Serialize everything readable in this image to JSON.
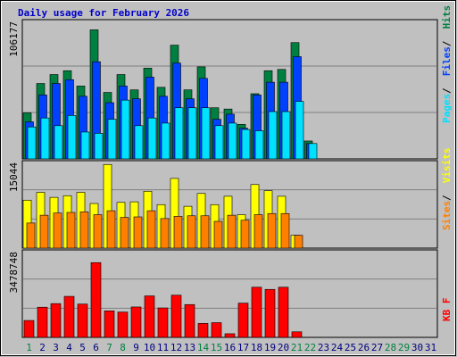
{
  "title": "Daily usage for February 2026",
  "colors": {
    "hits": "#008040",
    "files": "#0040ff",
    "pages": "#00e0ff",
    "visits": "#ffff00",
    "sites": "#ff8000",
    "kbytes": "#ff0000",
    "weekend_day": "#008040",
    "weekday": "#000080"
  },
  "chart_data": [
    {
      "type": "bar",
      "title": "Daily usage for February 2026",
      "ylabel_max": "106177",
      "legend": [
        "Pages",
        "Files",
        "Hits"
      ],
      "categories": [
        "1",
        "2",
        "3",
        "4",
        "5",
        "6",
        "7",
        "8",
        "9",
        "10",
        "11",
        "12",
        "13",
        "14",
        "15",
        "16",
        "17",
        "18",
        "19",
        "20",
        "21",
        "22",
        "23",
        "24",
        "25",
        "26",
        "27",
        "28",
        "29",
        "30",
        "31"
      ],
      "ylim": [
        0,
        106177
      ],
      "series": [
        {
          "name": "Hits",
          "values": [
            36000,
            59000,
            66000,
            69000,
            57000,
            101000,
            52000,
            66000,
            54000,
            71000,
            56000,
            89000,
            54000,
            72000,
            40000,
            39000,
            27000,
            51000,
            69000,
            70000,
            91000,
            14000,
            null,
            null,
            null,
            null,
            null,
            null,
            null,
            null,
            null
          ]
        },
        {
          "name": "Files",
          "values": [
            29000,
            50000,
            59000,
            62000,
            49000,
            76000,
            44000,
            57000,
            47000,
            64000,
            49000,
            75000,
            47000,
            63000,
            31000,
            35000,
            24000,
            50000,
            60000,
            60000,
            80000,
            12000,
            null,
            null,
            null,
            null,
            null,
            null,
            null,
            null,
            null
          ]
        },
        {
          "name": "Pages",
          "values": [
            25000,
            32000,
            26000,
            34000,
            21000,
            20000,
            31000,
            46000,
            26000,
            32000,
            28000,
            40000,
            40000,
            40000,
            26000,
            28000,
            23000,
            22000,
            37000,
            37000,
            45000,
            12000,
            null,
            null,
            null,
            null,
            null,
            null,
            null,
            null,
            null
          ]
        }
      ]
    },
    {
      "type": "bar",
      "ylabel_max": "15044",
      "legend": [
        "Sites",
        "Visits"
      ],
      "categories": [
        "1",
        "2",
        "3",
        "4",
        "5",
        "6",
        "7",
        "8",
        "9",
        "10",
        "11",
        "12",
        "13",
        "14",
        "15",
        "16",
        "17",
        "18",
        "19",
        "20",
        "21",
        "22",
        "23",
        "24",
        "25",
        "26",
        "27",
        "28",
        "29",
        "30",
        "31"
      ],
      "ylim": [
        0,
        15044
      ],
      "series": [
        {
          "name": "Visits",
          "values": [
            8600,
            10000,
            9100,
            9400,
            10000,
            8000,
            15000,
            8200,
            8300,
            10200,
            7800,
            12500,
            7500,
            9800,
            7800,
            9300,
            6000,
            11400,
            10300,
            9300,
            2300,
            null,
            null,
            null,
            null,
            null,
            null,
            null,
            null,
            null,
            null
          ]
        },
        {
          "name": "Sites",
          "values": [
            4500,
            5900,
            6300,
            6400,
            6500,
            6000,
            6700,
            5500,
            5600,
            6700,
            5300,
            5700,
            5800,
            5800,
            4800,
            5900,
            5000,
            6000,
            6200,
            6200,
            2300,
            null,
            null,
            null,
            null,
            null,
            null,
            null,
            null,
            null,
            null
          ]
        }
      ]
    },
    {
      "type": "bar",
      "ylabel_max": "3478748",
      "legend": [
        "KB F"
      ],
      "categories": [
        "1",
        "2",
        "3",
        "4",
        "5",
        "6",
        "7",
        "8",
        "9",
        "10",
        "11",
        "12",
        "13",
        "14",
        "15",
        "16",
        "17",
        "18",
        "19",
        "20",
        "21",
        "22",
        "23",
        "24",
        "25",
        "26",
        "27",
        "28",
        "29",
        "30",
        "31"
      ],
      "ylim": [
        0,
        3478748
      ],
      "series": [
        {
          "name": "KB F",
          "values": [
            700000,
            1250000,
            1400000,
            1700000,
            1380000,
            3100000,
            1100000,
            1050000,
            1260000,
            1720000,
            1220000,
            1750000,
            1360000,
            580000,
            610000,
            150000,
            1420000,
            2080000,
            1990000,
            2080000,
            230000,
            null,
            null,
            null,
            null,
            null,
            null,
            null,
            null,
            null,
            null
          ]
        }
      ]
    }
  ],
  "x_day_kind": [
    "weekend",
    "weekday",
    "weekday",
    "weekday",
    "weekday",
    "weekday",
    "weekend",
    "weekend",
    "weekday",
    "weekday",
    "weekday",
    "weekday",
    "weekday",
    "weekend",
    "weekend",
    "weekday",
    "weekday",
    "weekday",
    "weekday",
    "weekday",
    "weekend",
    "weekend",
    "weekday",
    "weekday",
    "weekday",
    "weekday",
    "weekday",
    "weekend",
    "weekend",
    "weekday",
    "weekday"
  ]
}
